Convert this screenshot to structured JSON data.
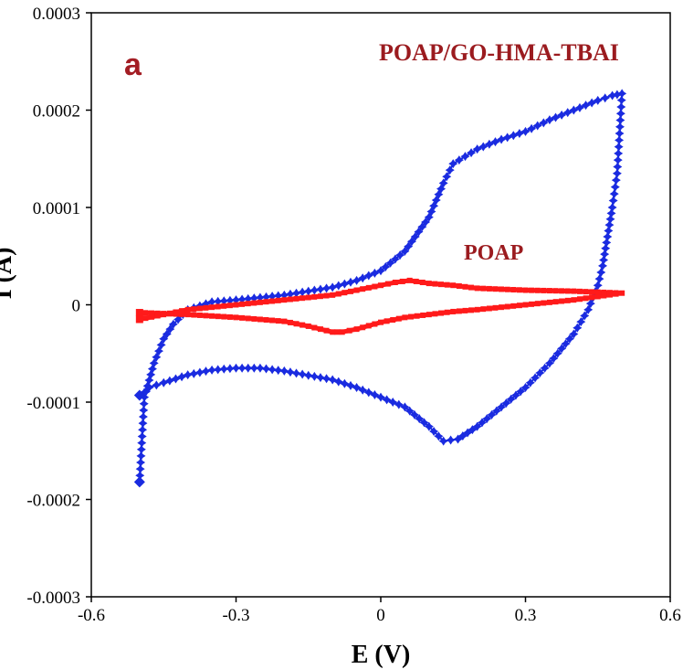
{
  "chart_data": {
    "type": "line",
    "title": "",
    "panel_label": "a",
    "xlabel": "E (V)",
    "ylabel": "I (A)",
    "xlim": [
      -0.6,
      0.6
    ],
    "ylim": [
      -0.0003,
      0.0003
    ],
    "xticks": [
      "-0.6",
      "-0.3",
      "0",
      "0.3",
      "0.6"
    ],
    "yticks": [
      "0.0003",
      "0.0002",
      "0.0001",
      "0",
      "-0.0001",
      "-0.0002",
      "-0.0003"
    ],
    "grid": false,
    "series": [
      {
        "name": "POAP/GO-HMA-TBAI",
        "color": "#1a2be0",
        "marker": "star",
        "x": [
          -0.5,
          -0.49,
          -0.47,
          -0.45,
          -0.43,
          -0.4,
          -0.35,
          -0.3,
          -0.2,
          -0.1,
          -0.05,
          0.0,
          0.05,
          0.1,
          0.13,
          0.15,
          0.2,
          0.25,
          0.3,
          0.35,
          0.4,
          0.45,
          0.48,
          0.5,
          0.49,
          0.48,
          0.47,
          0.46,
          0.45,
          0.43,
          0.4,
          0.35,
          0.3,
          0.25,
          0.2,
          0.16,
          0.13,
          0.1,
          0.05,
          0.0,
          -0.05,
          -0.1,
          -0.2,
          -0.25,
          -0.3,
          -0.35,
          -0.4,
          -0.45,
          -0.48,
          -0.49,
          -0.5
        ],
        "y": [
          -0.000182,
          -9.5e-05,
          -6e-05,
          -3.5e-05,
          -2e-05,
          -5e-06,
          3e-06,
          5e-06,
          1e-05,
          1.8e-05,
          2.5e-05,
          3.5e-05,
          5.5e-05,
          9e-05,
          0.000125,
          0.000145,
          0.00016,
          0.00017,
          0.000178,
          0.00019,
          0.0002,
          0.00021,
          0.000215,
          0.000217,
          0.000135,
          0.0001,
          7e-05,
          4e-05,
          2e-05,
          -5e-06,
          -3e-05,
          -6e-05,
          -8.5e-05,
          -0.000105,
          -0.000125,
          -0.000138,
          -0.00014,
          -0.000125,
          -0.000105,
          -9.5e-05,
          -8.5e-05,
          -7.7e-05,
          -6.8e-05,
          -6.5e-05,
          -6.5e-05,
          -6.7e-05,
          -7.2e-05,
          -8e-05,
          -8.5e-05,
          -9e-05,
          -9.3e-05
        ]
      },
      {
        "name": "POAP",
        "color": "#ff1a1a",
        "marker": "square",
        "x": [
          -0.5,
          -0.45,
          -0.4,
          -0.3,
          -0.2,
          -0.1,
          -0.05,
          0.0,
          0.03,
          0.06,
          0.1,
          0.15,
          0.2,
          0.3,
          0.4,
          0.45,
          0.5,
          0.4,
          0.3,
          0.2,
          0.15,
          0.1,
          0.05,
          0.0,
          -0.05,
          -0.08,
          -0.1,
          -0.15,
          -0.2,
          -0.3,
          -0.4,
          -0.45,
          -0.5
        ],
        "y": [
          -1.5e-05,
          -1e-05,
          -5e-06,
          0.0,
          5e-06,
          1e-05,
          1.5e-05,
          2e-05,
          2.3e-05,
          2.5e-05,
          2.2e-05,
          2e-05,
          1.7e-05,
          1.5e-05,
          1.4e-05,
          1.3e-05,
          1.2e-05,
          5e-06,
          0.0,
          -5e-06,
          -7e-06,
          -1e-05,
          -1.3e-05,
          -1.8e-05,
          -2.5e-05,
          -2.8e-05,
          -2.8e-05,
          -2.2e-05,
          -1.7e-05,
          -1.3e-05,
          -1e-05,
          -9e-06,
          -8e-06
        ]
      }
    ]
  }
}
